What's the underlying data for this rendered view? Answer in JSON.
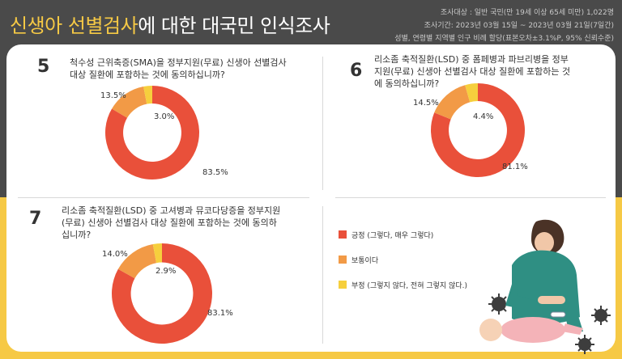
{
  "header": {
    "title_highlight": "신생아 선별검사",
    "title_rest": "에 대한 대국민 인식조사",
    "info_lines": [
      "조사대상 : 일반 국민(만 19세 이상 65세 미만) 1,022명",
      "조사기간: 2023년 03월 15일 ~ 2023년 03월 21일(7일간)",
      "성별, 연령별 지역별 인구 비례 할당(표본오차±3.1%P, 95% 신뢰수준)"
    ]
  },
  "colors": {
    "agree": "#e9503a",
    "neutral": "#f29a46",
    "disagree": "#f6cf3d"
  },
  "legend": [
    {
      "label": "긍정 (그렇다, 매우 그렇다)",
      "color": "#e9503a"
    },
    {
      "label": "보통이다",
      "color": "#f29a46"
    },
    {
      "label": "부정 (그렇지 않다, 전혀 그렇지 않다.)",
      "color": "#f6cf3d"
    }
  ],
  "questions": [
    {
      "number": "5",
      "text_lines": [
        "척수성 근위축증(SMA)을 정부지원(무료) 신생아 선별검사",
        "대상 질환에 포함하는 것에 동의하십니까?"
      ],
      "labels": {
        "agree": "83.5%",
        "neutral": "13.5%",
        "disagree": "3.0%"
      }
    },
    {
      "number": "6",
      "text_lines": [
        "리소좀 축적질환(LSD) 중 폼페병과 파브리병을 정부",
        "지원(무료) 신생아 선별검사 대상 질환에 포함하는 것",
        "에 동의하십니까?"
      ],
      "labels": {
        "agree": "81.1%",
        "neutral": "14.5%",
        "disagree": "4.4%"
      }
    },
    {
      "number": "7",
      "text_lines": [
        "리소좀 축적질환(LSD) 중 고셔병과 뮤코다당증을 정부지원",
        "(무료) 신생아 선별검사 대상 질환에 포함하는 것에 동의하",
        "십니까?"
      ],
      "labels": {
        "agree": "83.1%",
        "neutral": "14.0%",
        "disagree": "2.9%"
      }
    }
  ],
  "chart_data": [
    {
      "type": "pie",
      "categories": [
        "긍정 (그렇다, 매우 그렇다)",
        "보통이다",
        "부정 (그렇지 않다, 전혀 그렇지 않다.)"
      ],
      "values": [
        83.5,
        13.5,
        3.0
      ]
    },
    {
      "type": "pie",
      "categories": [
        "긍정 (그렇다, 매우 그렇다)",
        "보통이다",
        "부정 (그렇지 않다, 전혀 그렇지 않다.)"
      ],
      "values": [
        81.1,
        14.5,
        4.4
      ]
    },
    {
      "type": "pie",
      "categories": [
        "긍정 (그렇다, 매우 그렇다)",
        "보통이다",
        "부정 (그렇지 않다, 전혀 그렇지 않다.)"
      ],
      "values": [
        83.1,
        14.0,
        2.9
      ]
    }
  ]
}
